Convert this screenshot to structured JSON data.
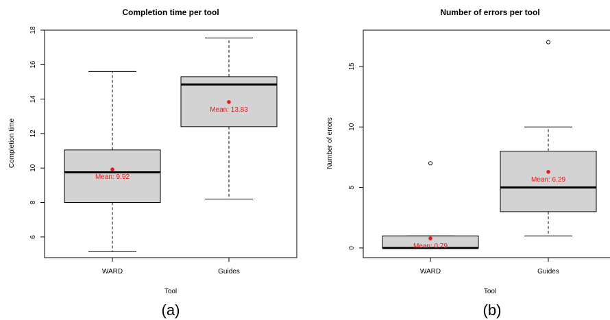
{
  "chart_data": [
    {
      "type": "box",
      "title": "Completion time per tool",
      "xlabel": "Tool",
      "ylabel": "Completion time",
      "ylim": [
        4.8,
        18
      ],
      "yticks": [
        6,
        8,
        10,
        12,
        14,
        16,
        18
      ],
      "categories": [
        "WARD",
        "Guides"
      ],
      "boxes": [
        {
          "min": 5.15,
          "q1": 8.0,
          "median": 9.75,
          "q3": 11.05,
          "max": 15.6,
          "mean": 9.92,
          "outliers": []
        },
        {
          "min": 8.2,
          "q1": 12.4,
          "median": 14.85,
          "q3": 15.3,
          "max": 17.55,
          "mean": 13.83,
          "outliers": []
        }
      ],
      "mean_labels": [
        "Mean: 9.92",
        "Mean: 13.83"
      ],
      "panel_label": "(a)",
      "mean_color": "#e41a1c",
      "box_fill": "#d3d3d3",
      "grid": false
    },
    {
      "type": "box",
      "title": "Number of errors per tool",
      "xlabel": "Tool",
      "ylabel": "Number of errors",
      "ylim": [
        -0.8,
        18
      ],
      "yticks": [
        0,
        5,
        10,
        15
      ],
      "categories": [
        "WARD",
        "Guides"
      ],
      "boxes": [
        {
          "min": 0,
          "q1": 0,
          "median": 0,
          "q3": 1,
          "max": 1,
          "mean": 0.79,
          "outliers": [
            7
          ]
        },
        {
          "min": 1,
          "q1": 3,
          "median": 5,
          "q3": 8,
          "max": 10,
          "mean": 6.29,
          "outliers": [
            17
          ]
        }
      ],
      "mean_labels": [
        "Mean: 0.79",
        "Mean: 6.29"
      ],
      "panel_label": "(b)",
      "mean_color": "#e41a1c",
      "box_fill": "#d3d3d3",
      "grid": false
    }
  ]
}
